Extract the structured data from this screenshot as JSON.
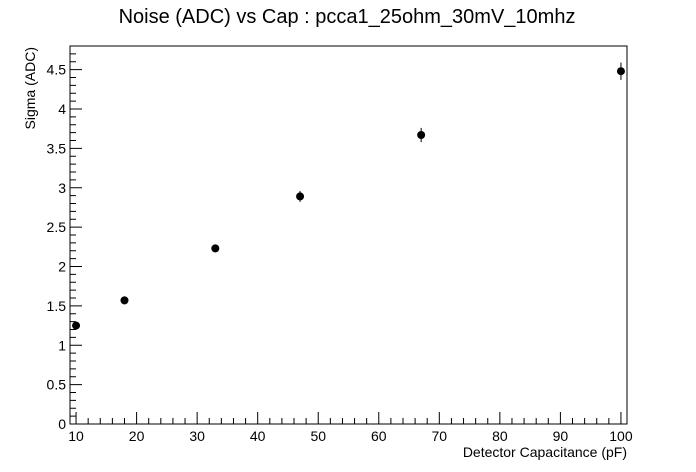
{
  "chart_data": {
    "type": "scatter",
    "title": "Noise (ADC) vs Cap : pcca1_25ohm_30mV_10mhz",
    "xlabel": "Detector Capacitance (pF)",
    "ylabel": "Sigma (ADC)",
    "xlim": [
      9,
      101
    ],
    "ylim": [
      0,
      4.8
    ],
    "x_ticks": [
      10,
      20,
      30,
      40,
      50,
      60,
      70,
      80,
      90,
      100
    ],
    "y_ticks": [
      0,
      0.5,
      1,
      1.5,
      2,
      2.5,
      3,
      3.5,
      4,
      4.5
    ],
    "x_tick_labels": [
      "10",
      "20",
      "30",
      "40",
      "50",
      "60",
      "70",
      "80",
      "90",
      "100"
    ],
    "y_tick_labels": [
      "0",
      "0.5",
      "1",
      "1.5",
      "2",
      "2.5",
      "3",
      "3.5",
      "4",
      "4.5"
    ],
    "grid": false,
    "marker_color": "#000000",
    "points": [
      {
        "x": 10,
        "y": 1.25,
        "err": 0.05
      },
      {
        "x": 18,
        "y": 1.57,
        "err": 0.05
      },
      {
        "x": 33,
        "y": 2.23,
        "err": 0.05
      },
      {
        "x": 47,
        "y": 2.89,
        "err": 0.07
      },
      {
        "x": 67,
        "y": 3.67,
        "err": 0.09
      },
      {
        "x": 100,
        "y": 4.48,
        "err": 0.11
      }
    ]
  }
}
